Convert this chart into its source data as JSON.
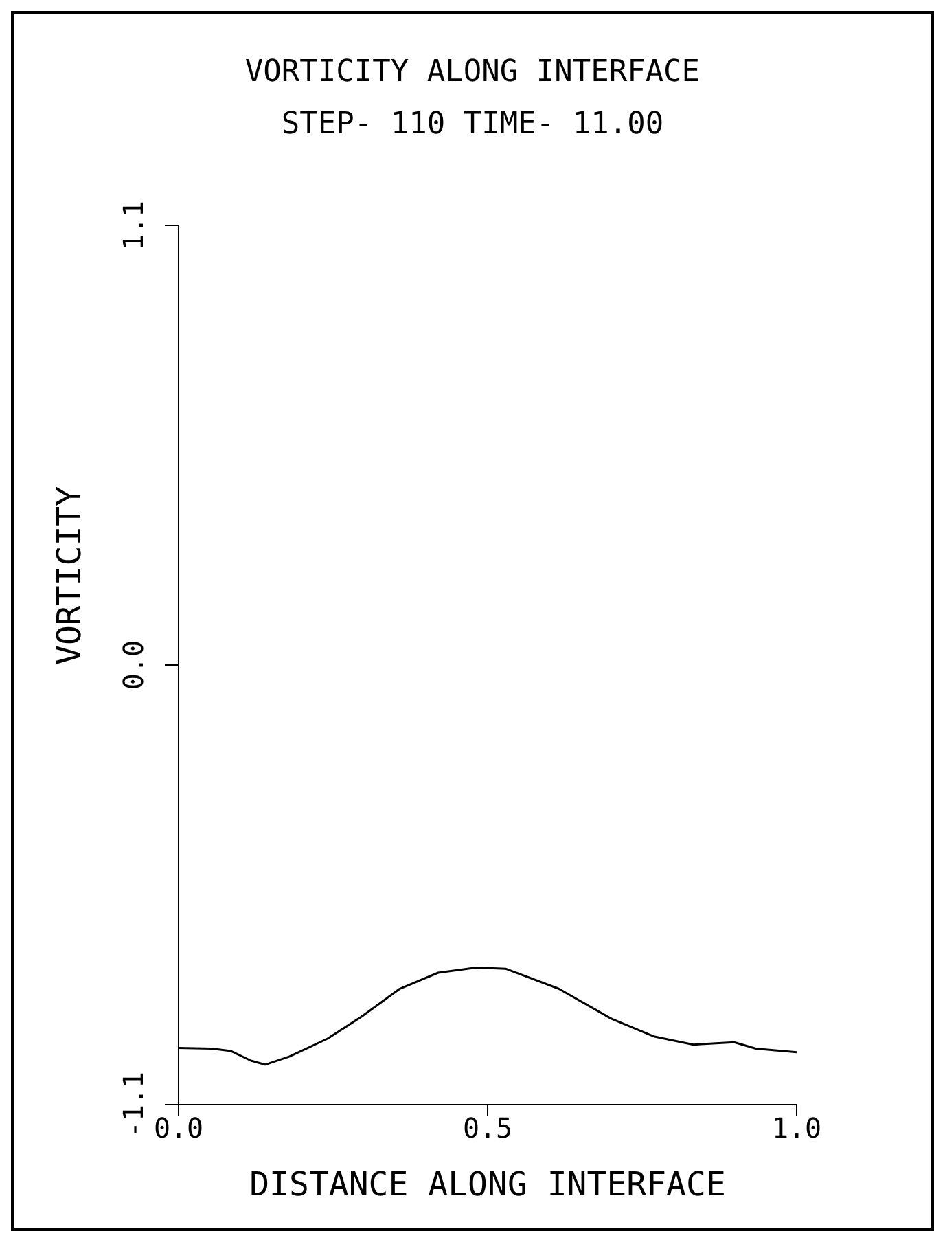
{
  "chart_data": {
    "type": "line",
    "title": "VORTICITY ALONG INTERFACE",
    "subtitle": "STEP- 110 TIME- 11.00",
    "xlabel": "DISTANCE ALONG INTERFACE",
    "ylabel": "VORTICITY",
    "x": [
      0,
      0.054,
      0.085,
      0.117,
      0.14,
      0.179,
      0.241,
      0.296,
      0.358,
      0.42,
      0.482,
      0.529,
      0.615,
      0.7,
      0.77,
      0.833,
      0.899,
      0.934,
      1.0
    ],
    "series": [
      {
        "color": "#000000",
        "values": [
          -0.958,
          -0.96,
          -0.966,
          -0.99,
          -1.0,
          -0.98,
          -0.935,
          -0.88,
          -0.81,
          -0.77,
          -0.757,
          -0.76,
          -0.81,
          -0.885,
          -0.93,
          -0.95,
          -0.944,
          -0.96,
          -0.969
        ]
      }
    ],
    "xlim": [
      0,
      1
    ],
    "xticks": [
      {
        "value": 0,
        "label": "0.0"
      },
      {
        "value": 0.5,
        "label": "0.5"
      },
      {
        "value": 1,
        "label": "1.0"
      }
    ],
    "ylim": [
      -1.1,
      1.1
    ],
    "yticks": [
      {
        "value": -1.1,
        "label": "-1.1"
      },
      {
        "value": 0,
        "label": "0.0"
      },
      {
        "value": 1.1,
        "label": "1.1"
      }
    ],
    "grid": false,
    "legend": false,
    "marker": "none",
    "line_style": "solid"
  }
}
